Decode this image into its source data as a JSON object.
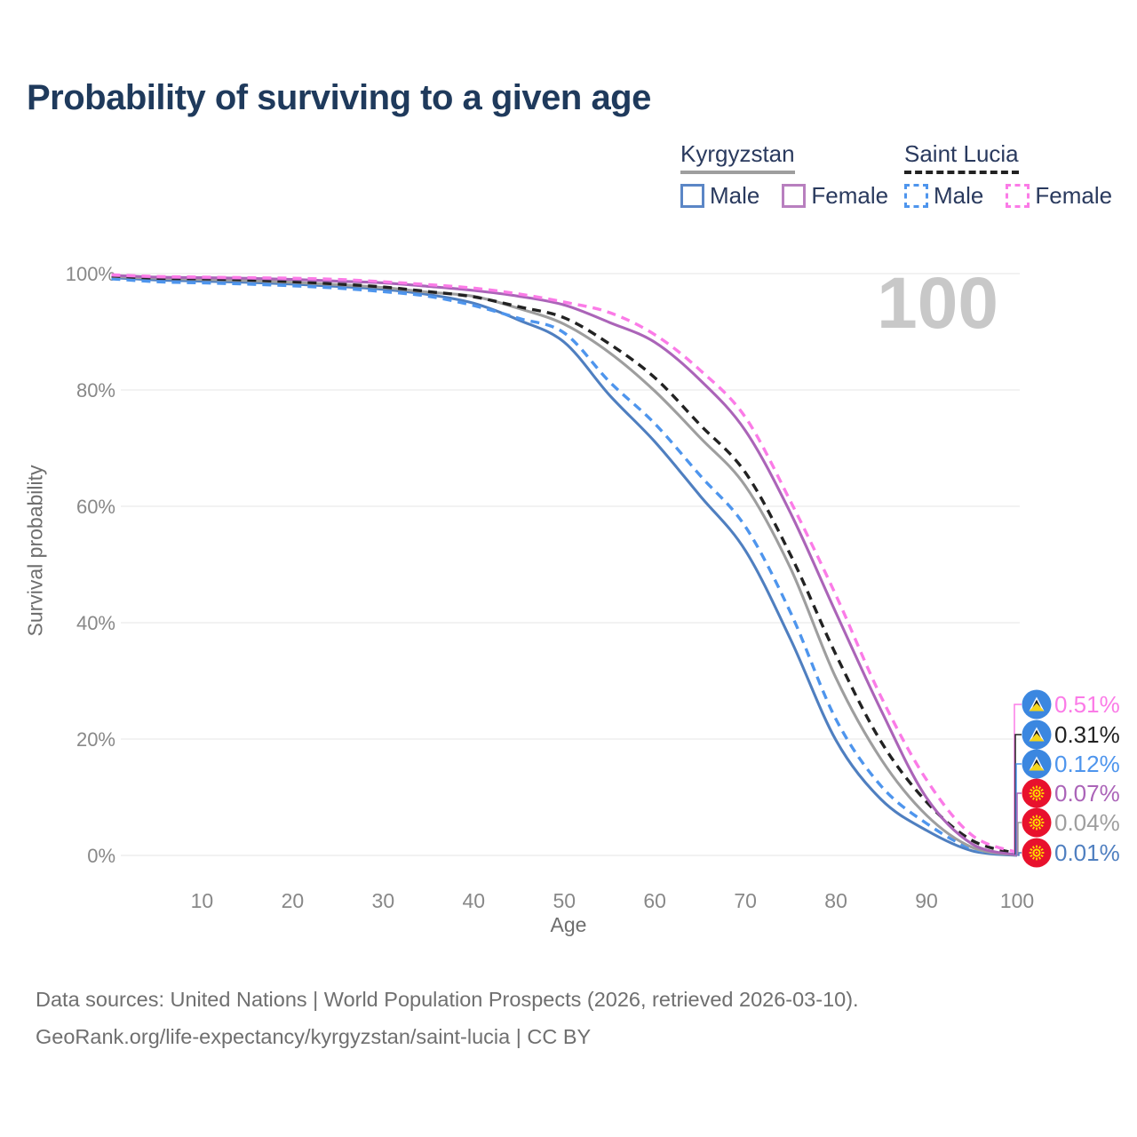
{
  "title": "Probability of surviving to a given age",
  "watermark_age": "100",
  "legend": {
    "groups": [
      {
        "country": "Kyrgyzstan",
        "line_dashed": false,
        "line_color": "#9e9e9e",
        "items": [
          {
            "label": "Male",
            "color": "#5b86c6",
            "dashed": false
          },
          {
            "label": "Female",
            "color": "#b87fbf",
            "dashed": false
          }
        ]
      },
      {
        "country": "Saint Lucia",
        "line_dashed": true,
        "line_color": "#222222",
        "items": [
          {
            "label": "Male",
            "color": "#4e95ed",
            "dashed": true
          },
          {
            "label": "Female",
            "color": "#fb7be7",
            "dashed": true
          }
        ]
      }
    ]
  },
  "chart_data": {
    "type": "line",
    "title": "Probability of surviving to a given age",
    "xlabel": "Age",
    "ylabel": "Survival probability",
    "xlim": [
      0,
      100
    ],
    "ylim": [
      0,
      100
    ],
    "x_ticks": [
      10,
      20,
      30,
      40,
      50,
      60,
      70,
      80,
      90,
      100
    ],
    "y_ticks": [
      0,
      20,
      40,
      60,
      80,
      100
    ],
    "y_tick_suffix": "%",
    "grid": true,
    "legend_position": "top-right",
    "x": [
      0,
      5,
      10,
      15,
      20,
      25,
      30,
      35,
      40,
      45,
      50,
      55,
      60,
      65,
      70,
      75,
      80,
      85,
      90,
      95,
      100
    ],
    "series": [
      {
        "name": "Saint Lucia Female",
        "country": "Saint Lucia",
        "group": "Female",
        "color": "#fb7be7",
        "dashed": true,
        "flag": "saint-lucia",
        "end_label": "0.51%",
        "values": [
          99.8,
          99.5,
          99.4,
          99.3,
          99.2,
          99.0,
          98.6,
          98.1,
          97.5,
          96.5,
          95.1,
          93.3,
          89.5,
          83.4,
          75.3,
          60.8,
          44.7,
          27.2,
          13.0,
          3.5,
          0.51
        ]
      },
      {
        "name": "Saint Lucia Both sexes",
        "country": "Saint Lucia",
        "group": "Both sexes",
        "color": "#222222",
        "dashed": true,
        "flag": "saint-lucia",
        "end_label": "0.31%",
        "values": [
          99.6,
          99.2,
          99.1,
          98.9,
          98.6,
          98.2,
          97.7,
          96.9,
          96.0,
          94.3,
          92.4,
          87.9,
          82.1,
          74.0,
          65.8,
          51.6,
          34.5,
          19.5,
          9.2,
          2.6,
          0.31
        ]
      },
      {
        "name": "Saint Lucia Male",
        "country": "Saint Lucia",
        "group": "Male",
        "color": "#4e95ed",
        "dashed": true,
        "flag": "saint-lucia",
        "end_label": "0.12%",
        "values": [
          99.1,
          98.6,
          98.4,
          98.2,
          97.9,
          97.5,
          96.9,
          96.1,
          94.5,
          92.3,
          89.8,
          81.4,
          74.2,
          65.3,
          56.5,
          41.7,
          23.4,
          11.9,
          5.5,
          1.2,
          0.12
        ]
      },
      {
        "name": "Kyrgyzstan Female",
        "country": "Kyrgyzstan",
        "group": "Female",
        "color": "#ab64b8",
        "dashed": false,
        "flag": "kyrgyzstan",
        "end_label": "0.07%",
        "values": [
          99.7,
          99.4,
          99.3,
          99.2,
          99.0,
          98.7,
          98.4,
          97.8,
          97.1,
          96.1,
          94.6,
          91.6,
          88.2,
          81.7,
          73.0,
          58.8,
          41.7,
          24.9,
          9.9,
          2.0,
          0.07
        ]
      },
      {
        "name": "Kyrgyzstan Both sexes",
        "country": "Kyrgyzstan",
        "group": "Both sexes",
        "color": "#9e9e9e",
        "dashed": false,
        "flag": "kyrgyzstan",
        "end_label": "0.04%",
        "values": [
          99.5,
          99.2,
          99.0,
          98.8,
          98.5,
          98.1,
          97.6,
          96.8,
          96.1,
          94.0,
          91.3,
          86.4,
          79.8,
          71.8,
          63.5,
          49.3,
          30.5,
          16.5,
          6.9,
          1.4,
          0.04
        ]
      },
      {
        "name": "Kyrgyzstan Male",
        "country": "Kyrgyzstan",
        "group": "Male",
        "color": "#4f7fc0",
        "dashed": false,
        "flag": "kyrgyzstan",
        "end_label": "0.01%",
        "values": [
          99.3,
          98.9,
          98.7,
          98.5,
          98.2,
          97.8,
          97.3,
          96.4,
          94.9,
          92.0,
          88.2,
          79.1,
          71.1,
          61.8,
          52.4,
          37.1,
          19.8,
          9.6,
          4.3,
          0.8,
          0.01
        ]
      }
    ]
  },
  "footer": {
    "line1": "Data sources: United Nations | World Population Prospects (2026, retrieved 2026-03-10).",
    "line2": "GeoRank.org/life-expectancy/kyrgyzstan/saint-lucia | CC BY"
  },
  "colors": {
    "title": "#1f3a5c",
    "grid": "#ebebeb",
    "tick_text": "#888888",
    "axis_text": "#6e6e6e",
    "watermark": "#c8c8c8",
    "footer": "#6f6f6f",
    "flag_saint_lucia_bg": "#3b87e0",
    "flag_kyrgyzstan_bg": "#e8112d"
  }
}
